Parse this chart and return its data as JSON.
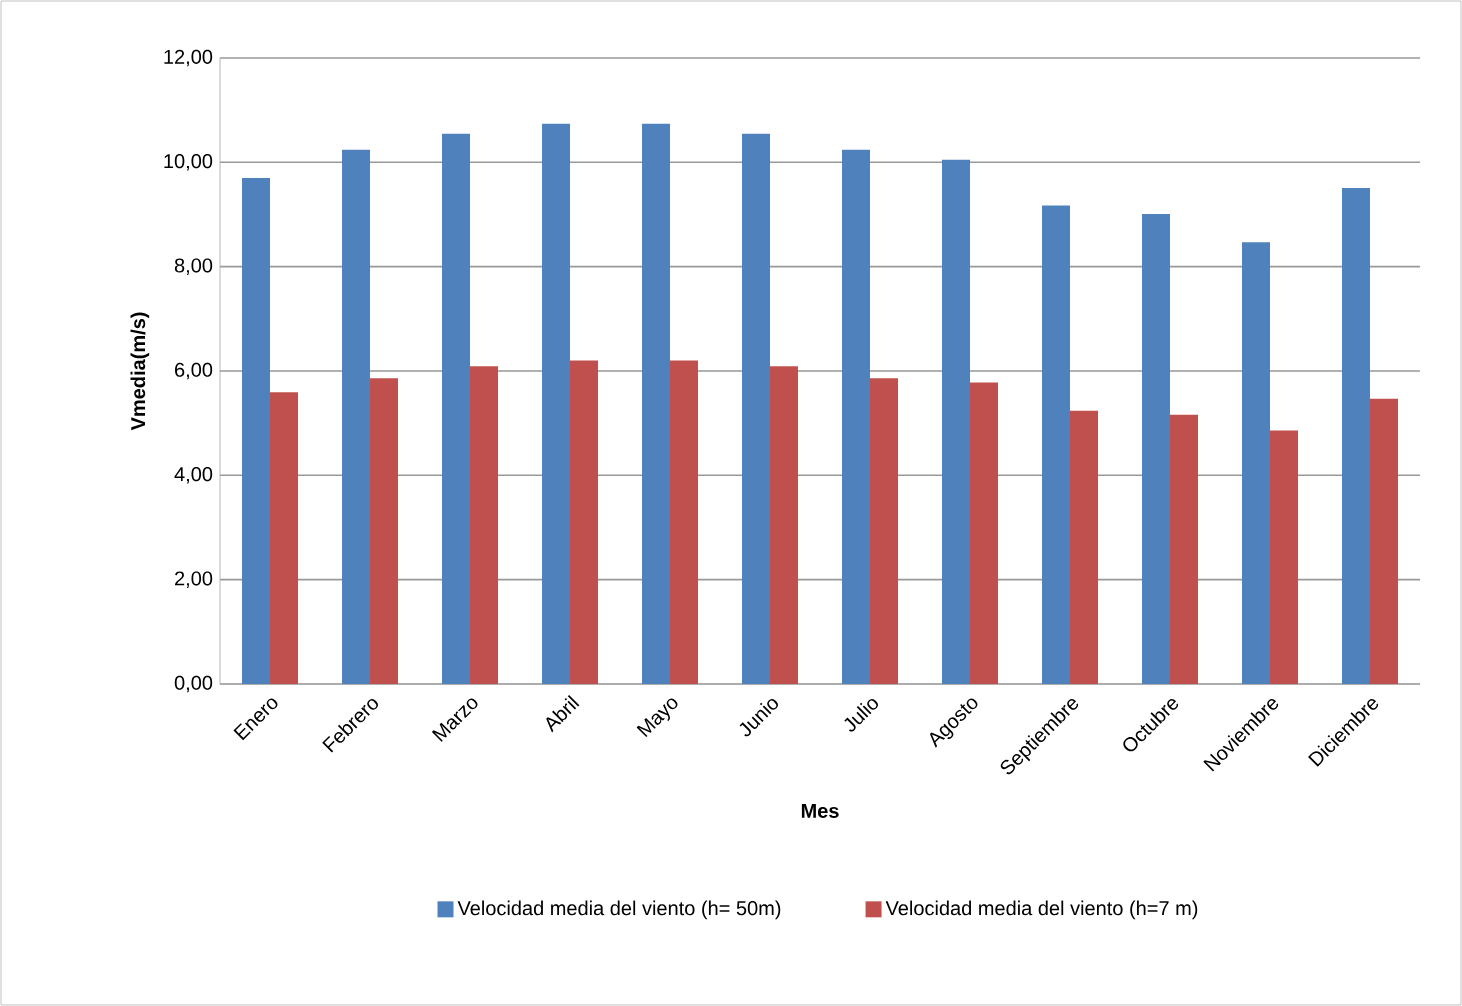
{
  "chart_data": {
    "type": "bar",
    "xlabel": "Mes",
    "ylabel": "Vmedia(m/s)",
    "categories": [
      "Enero",
      "Febrero",
      "Marzo",
      "Abril",
      "Mayo",
      "Junio",
      "Julio",
      "Agosto",
      "Septiembre",
      "Octubre",
      "Noviembre",
      "Diciembre"
    ],
    "series": [
      {
        "name": "Velocidad media del viento (h= 50m)",
        "color": "#4f81bd",
        "values": [
          9.7,
          10.24,
          10.55,
          10.74,
          10.74,
          10.55,
          10.24,
          10.05,
          9.17,
          9.01,
          8.47,
          9.51
        ]
      },
      {
        "name": "Velocidad media del viento (h=7 m)",
        "color": "#c0504d",
        "values": [
          5.59,
          5.86,
          6.09,
          6.2,
          6.2,
          6.09,
          5.86,
          5.78,
          5.24,
          5.16,
          4.86,
          5.47
        ]
      }
    ],
    "ylim": [
      0,
      12
    ],
    "yticks": [
      {
        "value": 0,
        "label": "0,00"
      },
      {
        "value": 2,
        "label": "2,00"
      },
      {
        "value": 4,
        "label": "4,00"
      },
      {
        "value": 6,
        "label": "6,00"
      },
      {
        "value": 8,
        "label": "8,00"
      },
      {
        "value": 10,
        "label": "10,00"
      },
      {
        "value": 12,
        "label": "12,00"
      }
    ],
    "grid": "y",
    "legend": "bottom"
  }
}
